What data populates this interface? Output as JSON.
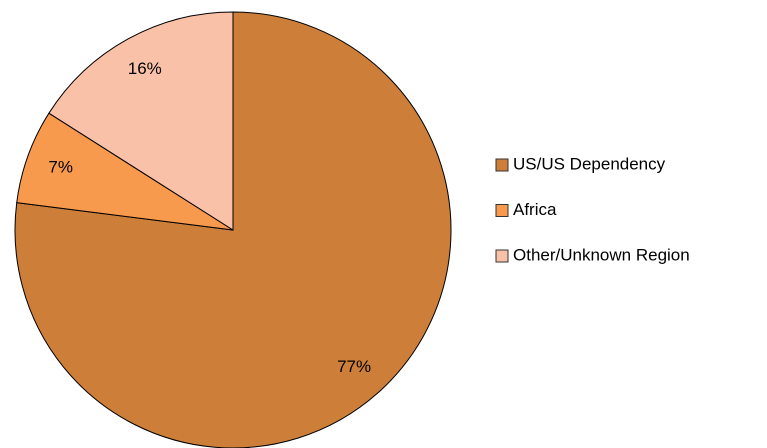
{
  "chart_data": {
    "type": "pie",
    "categories": [
      "US/US Dependency",
      "Africa",
      "Other/Unknown Region"
    ],
    "values": [
      77,
      7,
      16
    ],
    "value_labels": [
      "77%",
      "7%",
      "16%"
    ],
    "colors": [
      "#cd7f3a",
      "#f79a4e",
      "#fac1a9"
    ],
    "legend": "right"
  }
}
